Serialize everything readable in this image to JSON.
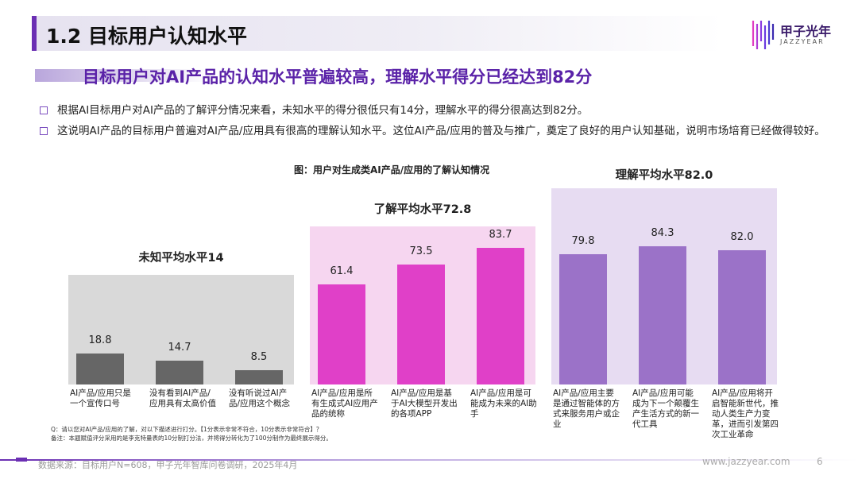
{
  "header": {
    "title": "1.2 目标用户认知水平",
    "logo_text": "甲子光年",
    "logo_sub": "JAZZYEAR"
  },
  "subtitle": "目标用户对AI产品的认知水平普遍较高，理解水平得分已经达到82分",
  "bullets": [
    "根据AI目标用户对AI产品的了解评分情况来看，未知水平的得分很低只有14分，理解水平的得分很高达到82分。",
    "这说明AI产品的目标用户普遍对AI产品/应用具有很高的理解认知水平。这位AI产品/应用的普及与推广，奠定了良好的用户认知基础，说明市场培育已经做得较好。"
  ],
  "chart_data": {
    "type": "bar",
    "title": "图：用户对生成类AI产品/应用的了解认知情况",
    "groups": [
      {
        "label": "未知平均水平14",
        "color": "#666666",
        "bg": "#d9d9d9",
        "categories": [
          "AI产品/应用只是一个宣传口号",
          "没有看到AI产品/应用具有太高价值",
          "没有听说过AI产品/应用这个概念"
        ],
        "values": [
          18.8,
          14.7,
          8.5
        ]
      },
      {
        "label": "了解平均水平72.8",
        "color": "#e040c8",
        "bg": "#f6d6f0",
        "categories": [
          "AI产品/应用是所有生成式AI应用产品的统称",
          "AI产品/应用是基于AI大模型开发出的各项APP",
          "AI产品/应用是可能成为未来的AI助手"
        ],
        "values": [
          61.4,
          73.5,
          83.7
        ]
      },
      {
        "label": "理解平均水平82.0",
        "color": "#9b72c8",
        "bg": "#e7dcf2",
        "categories": [
          "AI产品/应用主要是通过智能体的方式来服务用户或企业",
          "AI产品/应用可能成为下一个颠覆生产生活方式的新一代工具",
          "AI产品/应用将开启智能新世代，推动人类生产力变革，进而引发第四次工业革命"
        ],
        "values": [
          79.8,
          84.3,
          82.0
        ]
      }
    ]
  },
  "notes": [
    "Q：请以您对AI产品/应用的了解，对以下描述进行打分。【1分表示非常不符合，10分表示非常符合】？",
    "备注：本题赋值评分采用的是李克特量表的10分制打分法，并将得分转化为了100分制作为最终展示得分。"
  ],
  "footer": {
    "source": "数据来源：目标用户N=608，甲子光年智库问卷调研，2025年4月",
    "site": "www.jazzyear.com",
    "page": "6"
  }
}
